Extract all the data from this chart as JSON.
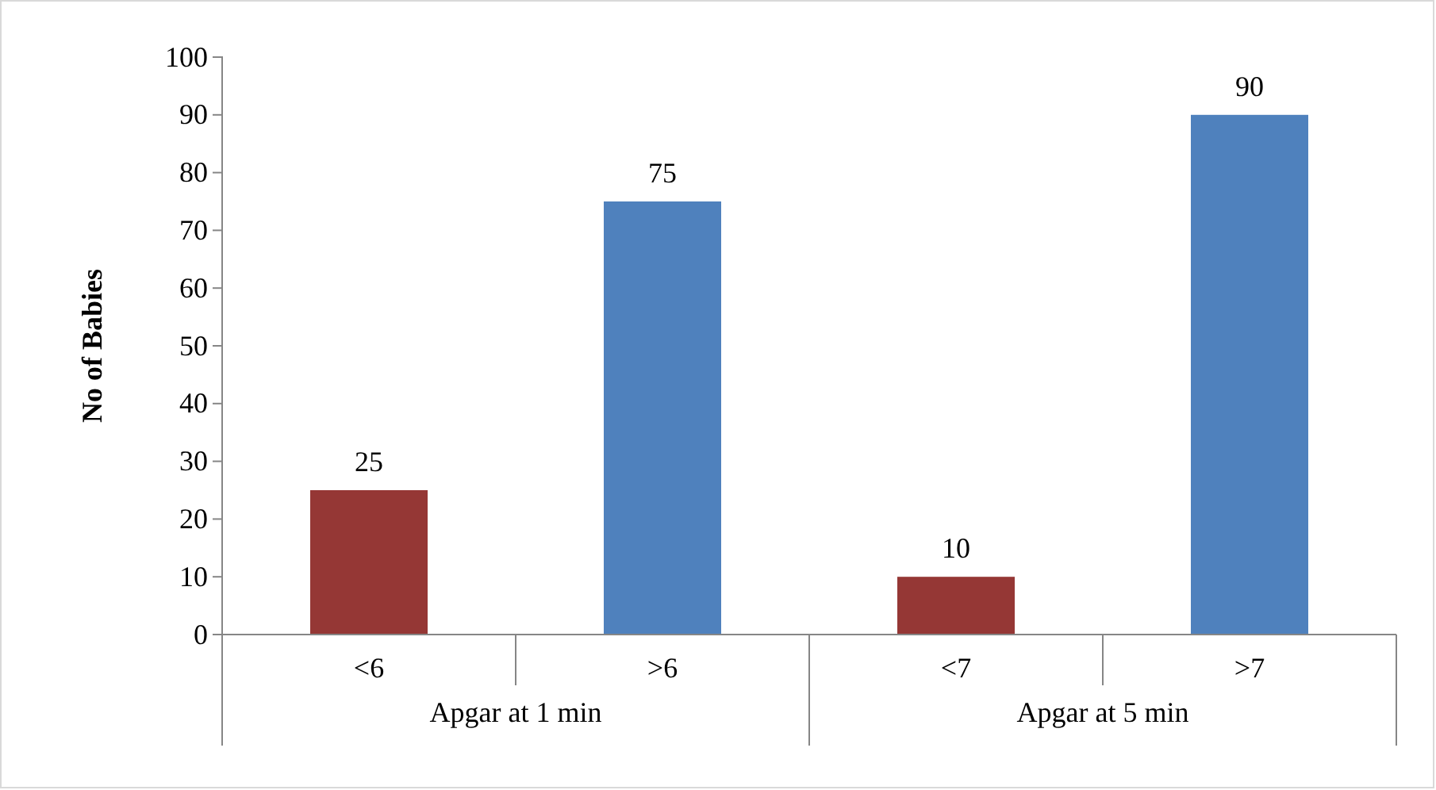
{
  "chart_data": {
    "type": "bar",
    "ylabel": "No of Babies",
    "categories": [
      "<6",
      ">6",
      "<7",
      ">7"
    ],
    "values": [
      25,
      75,
      10,
      90
    ],
    "colors": [
      "#953735",
      "#4f81bd",
      "#953735",
      "#4f81bd"
    ],
    "ylim": [
      0,
      100
    ],
    "yticks": [
      0,
      10,
      20,
      30,
      40,
      50,
      60,
      70,
      80,
      90,
      100
    ],
    "data_labels": true,
    "annotations": [
      "Apgar at 1 min",
      "Apgar at 5 min"
    ]
  }
}
